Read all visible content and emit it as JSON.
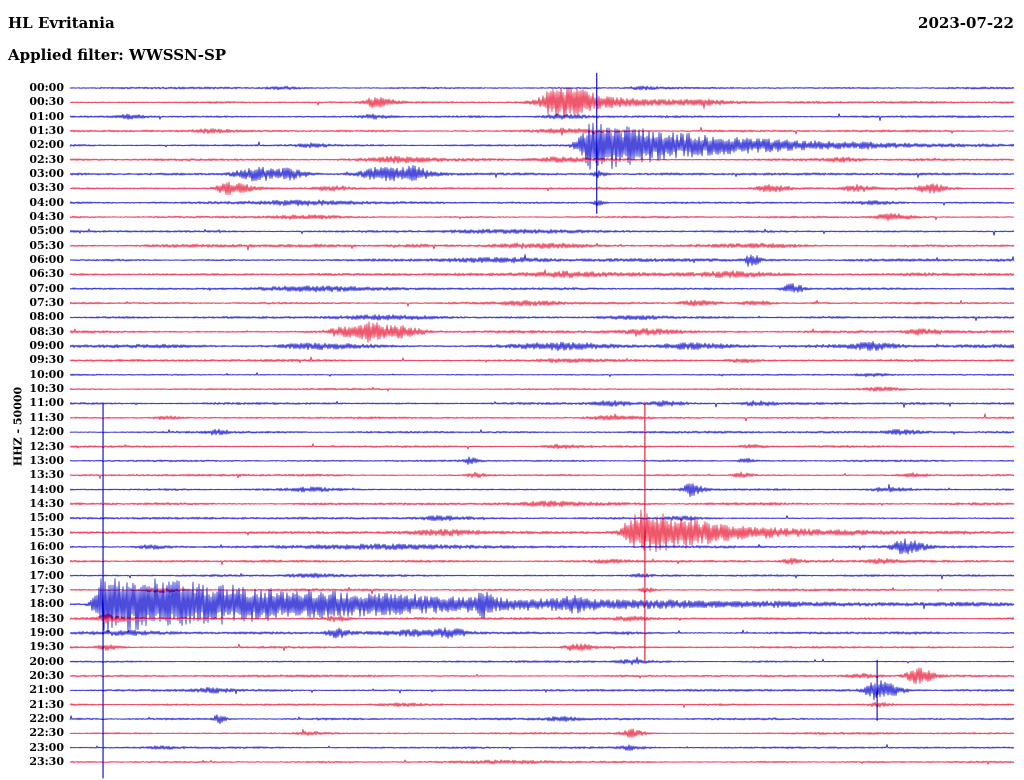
{
  "header": {
    "station": "HL Evritania",
    "date": "2023-07-22",
    "filter_label": "Applied filter: WWSSN-SP"
  },
  "axis": {
    "scale_label": "HHZ - 50000"
  },
  "colors": {
    "blue": "#0000cc",
    "red": "#e8102e",
    "text": "#000000",
    "background": "#ffffff"
  },
  "chart_data": {
    "type": "line",
    "subtype": "seismogram-helicorder",
    "station": "HL Evritania",
    "date": "2023-07-22",
    "applied_filter": "WWSSN-SP",
    "channel": "HHZ",
    "scale": "50000",
    "minutes_per_row": 30,
    "legend_position": "none",
    "grid": false,
    "rows": [
      {
        "label": "00:00",
        "color": "blue",
        "noise": 0.9
      },
      {
        "label": "00:30",
        "color": "red",
        "noise": 1.0
      },
      {
        "label": "01:00",
        "color": "blue",
        "noise": 1.0
      },
      {
        "label": "01:30",
        "color": "red",
        "noise": 1.0
      },
      {
        "label": "02:00",
        "color": "blue",
        "noise": 1.0
      },
      {
        "label": "02:30",
        "color": "red",
        "noise": 1.2
      },
      {
        "label": "03:00",
        "color": "blue",
        "noise": 1.1
      },
      {
        "label": "03:30",
        "color": "red",
        "noise": 1.0
      },
      {
        "label": "04:00",
        "color": "blue",
        "noise": 1.1
      },
      {
        "label": "04:30",
        "color": "red",
        "noise": 1.0
      },
      {
        "label": "05:00",
        "color": "blue",
        "noise": 1.0
      },
      {
        "label": "05:30",
        "color": "red",
        "noise": 1.5
      },
      {
        "label": "06:00",
        "color": "blue",
        "noise": 1.2
      },
      {
        "label": "06:30",
        "color": "red",
        "noise": 1.4
      },
      {
        "label": "07:00",
        "color": "blue",
        "noise": 1.1
      },
      {
        "label": "07:30",
        "color": "red",
        "noise": 1.1
      },
      {
        "label": "08:00",
        "color": "blue",
        "noise": 1.0
      },
      {
        "label": "08:30",
        "color": "red",
        "noise": 1.3
      },
      {
        "label": "09:00",
        "color": "blue",
        "noise": 1.8
      },
      {
        "label": "09:30",
        "color": "red",
        "noise": 1.1
      },
      {
        "label": "10:00",
        "color": "blue",
        "noise": 0.8
      },
      {
        "label": "10:30",
        "color": "red",
        "noise": 0.8
      },
      {
        "label": "11:00",
        "color": "blue",
        "noise": 1.0
      },
      {
        "label": "11:30",
        "color": "red",
        "noise": 1.0
      },
      {
        "label": "12:00",
        "color": "blue",
        "noise": 1.0
      },
      {
        "label": "12:30",
        "color": "red",
        "noise": 1.0
      },
      {
        "label": "13:00",
        "color": "blue",
        "noise": 0.9
      },
      {
        "label": "13:30",
        "color": "red",
        "noise": 1.0
      },
      {
        "label": "14:00",
        "color": "blue",
        "noise": 1.0
      },
      {
        "label": "14:30",
        "color": "red",
        "noise": 1.2
      },
      {
        "label": "15:00",
        "color": "blue",
        "noise": 1.0
      },
      {
        "label": "15:30",
        "color": "red",
        "noise": 1.3
      },
      {
        "label": "16:00",
        "color": "blue",
        "noise": 1.1
      },
      {
        "label": "16:30",
        "color": "red",
        "noise": 1.1
      },
      {
        "label": "17:00",
        "color": "blue",
        "noise": 1.0
      },
      {
        "label": "17:30",
        "color": "red",
        "noise": 1.1
      },
      {
        "label": "18:00",
        "color": "blue",
        "noise": 1.0
      },
      {
        "label": "18:30",
        "color": "red",
        "noise": 1.1
      },
      {
        "label": "19:00",
        "color": "blue",
        "noise": 1.2
      },
      {
        "label": "19:30",
        "color": "red",
        "noise": 1.0
      },
      {
        "label": "20:00",
        "color": "blue",
        "noise": 0.9
      },
      {
        "label": "20:30",
        "color": "red",
        "noise": 1.0
      },
      {
        "label": "21:00",
        "color": "blue",
        "noise": 1.0
      },
      {
        "label": "21:30",
        "color": "red",
        "noise": 0.9
      },
      {
        "label": "22:00",
        "color": "blue",
        "noise": 1.0
      },
      {
        "label": "22:30",
        "color": "red",
        "noise": 1.0
      },
      {
        "label": "23:00",
        "color": "blue",
        "noise": 0.9
      },
      {
        "label": "23:30",
        "color": "red",
        "noise": 0.9
      }
    ],
    "events_format": [
      "row_index",
      "x_fraction_of_line",
      "amplitude_px",
      "rise_px",
      "decay_px"
    ],
    "events": [
      [
        0,
        0.222,
        1.8,
        10,
        15
      ],
      [
        0,
        0.604,
        1.5,
        8,
        12
      ],
      [
        1,
        0.519,
        16,
        14,
        30
      ],
      [
        1,
        0.323,
        5,
        8,
        14
      ],
      [
        1,
        0.6,
        3,
        20,
        40
      ],
      [
        1,
        0.67,
        2.5,
        15,
        25
      ],
      [
        2,
        0.318,
        2,
        8,
        12
      ],
      [
        2,
        0.519,
        2.5,
        12,
        20
      ],
      [
        2,
        0.064,
        1.8,
        8,
        12
      ],
      [
        3,
        0.519,
        2.5,
        15,
        25
      ],
      [
        3,
        0.148,
        1.5,
        10,
        15
      ],
      [
        4,
        0.556,
        26,
        10,
        120
      ],
      [
        4,
        0.254,
        1.8,
        10,
        15
      ],
      [
        5,
        0.35,
        3,
        20,
        30
      ],
      [
        5,
        0.519,
        2.5,
        15,
        25
      ],
      [
        5,
        0.817,
        2,
        10,
        15
      ],
      [
        6,
        0.196,
        6,
        14,
        20
      ],
      [
        6,
        0.233,
        4,
        8,
        12
      ],
      [
        6,
        0.334,
        7,
        16,
        25
      ],
      [
        6,
        0.365,
        4,
        6,
        10
      ],
      [
        6,
        0.558,
        3,
        3,
        6
      ],
      [
        7,
        0.167,
        6,
        8,
        18
      ],
      [
        7,
        0.741,
        3,
        10,
        15
      ],
      [
        7,
        0.832,
        3,
        8,
        12
      ],
      [
        7,
        0.909,
        4.5,
        8,
        14
      ],
      [
        7,
        0.275,
        2,
        10,
        15
      ],
      [
        8,
        0.244,
        2,
        30,
        40
      ],
      [
        8,
        0.558,
        2.5,
        3,
        6
      ],
      [
        8,
        0.847,
        2,
        15,
        20
      ],
      [
        9,
        0.869,
        3.5,
        10,
        16
      ],
      [
        9,
        0.244,
        1.8,
        20,
        30
      ],
      [
        10,
        0.477,
        1.8,
        60,
        80
      ],
      [
        11,
        0.487,
        2.5,
        30,
        40
      ],
      [
        11,
        0.731,
        2,
        20,
        30
      ],
      [
        12,
        0.72,
        7,
        3,
        6
      ],
      [
        12,
        0.466,
        2,
        40,
        60
      ],
      [
        13,
        0.53,
        2.2,
        40,
        50
      ],
      [
        13,
        0.699,
        2,
        20,
        30
      ],
      [
        14,
        0.763,
        5,
        6,
        10
      ],
      [
        14,
        0.254,
        2,
        30,
        40
      ],
      [
        15,
        0.662,
        2.5,
        10,
        14
      ],
      [
        15,
        0.726,
        2,
        8,
        12
      ],
      [
        15,
        0.487,
        2,
        20,
        30
      ],
      [
        16,
        0.328,
        2,
        30,
        40
      ],
      [
        16,
        0.593,
        2,
        20,
        30
      ],
      [
        17,
        0.291,
        6,
        10,
        15
      ],
      [
        17,
        0.318,
        9,
        6,
        10
      ],
      [
        17,
        0.344,
        6,
        8,
        20
      ],
      [
        17,
        0.614,
        2.5,
        15,
        25
      ],
      [
        17,
        0.9,
        2.5,
        10,
        15
      ],
      [
        18,
        0.254,
        2.5,
        20,
        30
      ],
      [
        18,
        0.519,
        2.5,
        20,
        30
      ],
      [
        18,
        0.646,
        2.5,
        15,
        25
      ],
      [
        18,
        0.847,
        3,
        12,
        18
      ],
      [
        19,
        0.519,
        2,
        15,
        25
      ],
      [
        19,
        0.71,
        2,
        10,
        15
      ],
      [
        20,
        0.847,
        1.8,
        10,
        15
      ],
      [
        21,
        0.858,
        1.8,
        10,
        15
      ],
      [
        22,
        0.572,
        2.2,
        10,
        15
      ],
      [
        22,
        0.63,
        2.5,
        10,
        15
      ],
      [
        22,
        0.726,
        2,
        10,
        15
      ],
      [
        23,
        0.101,
        2,
        8,
        12
      ],
      [
        23,
        0.572,
        1.8,
        15,
        20
      ],
      [
        24,
        0.154,
        2.2,
        6,
        10
      ],
      [
        24,
        0.879,
        2,
        10,
        14
      ],
      [
        25,
        0.519,
        2,
        10,
        15
      ],
      [
        25,
        0.72,
        1.8,
        8,
        12
      ],
      [
        26,
        0.424,
        3,
        4,
        6
      ],
      [
        26,
        0.715,
        2.5,
        4,
        6
      ],
      [
        27,
        0.429,
        2.5,
        5,
        8
      ],
      [
        27,
        0.71,
        3,
        5,
        8
      ],
      [
        27,
        0.89,
        2,
        8,
        12
      ],
      [
        28,
        0.657,
        6.5,
        5,
        9
      ],
      [
        28,
        0.863,
        2,
        10,
        15
      ],
      [
        28,
        0.254,
        1.8,
        15,
        20
      ],
      [
        29,
        0.508,
        2,
        20,
        30
      ],
      [
        30,
        0.646,
        2,
        10,
        15
      ],
      [
        30,
        0.392,
        1.8,
        15,
        20
      ],
      [
        31,
        0.609,
        24,
        12,
        80
      ],
      [
        31,
        0.4,
        2.5,
        20,
        30
      ],
      [
        32,
        0.884,
        7,
        8,
        14
      ],
      [
        32,
        0.339,
        2.5,
        50,
        60
      ],
      [
        32,
        0.085,
        2,
        10,
        15
      ],
      [
        33,
        0.763,
        2.5,
        5,
        8
      ],
      [
        33,
        0.858,
        2,
        8,
        12
      ],
      [
        33,
        0.572,
        1.8,
        15,
        20
      ],
      [
        34,
        0.254,
        2,
        15,
        20
      ],
      [
        34,
        0.604,
        2,
        5,
        8
      ],
      [
        35,
        0.609,
        2.5,
        4,
        8
      ],
      [
        35,
        0.095,
        2,
        10,
        15
      ],
      [
        36,
        0.035,
        30,
        6,
        260
      ],
      [
        36,
        0.437,
        8,
        3,
        6
      ],
      [
        36,
        0.53,
        4,
        8,
        14
      ],
      [
        37,
        0.042,
        4,
        8,
        14
      ],
      [
        37,
        0.281,
        2.5,
        6,
        10
      ],
      [
        37,
        0.593,
        2,
        10,
        15
      ],
      [
        38,
        0.281,
        4.5,
        6,
        10
      ],
      [
        38,
        0.371,
        2.5,
        25,
        35
      ],
      [
        38,
        0.403,
        3,
        8,
        12
      ],
      [
        38,
        0.064,
        2,
        30,
        60
      ],
      [
        39,
        0.535,
        4,
        7,
        12
      ],
      [
        39,
        0.037,
        2.5,
        6,
        10
      ],
      [
        40,
        0.593,
        1.8,
        10,
        15
      ],
      [
        41,
        0.897,
        8,
        7,
        12
      ],
      [
        41,
        0.837,
        2,
        8,
        12
      ],
      [
        42,
        0.855,
        9,
        8,
        16
      ],
      [
        42,
        0.148,
        2,
        10,
        15
      ],
      [
        43,
        0.855,
        2,
        6,
        10
      ],
      [
        43,
        0.35,
        1.5,
        15,
        20
      ],
      [
        44,
        0.157,
        5,
        3,
        5
      ],
      [
        44,
        0.519,
        2,
        10,
        15
      ],
      [
        45,
        0.593,
        4,
        6,
        10
      ],
      [
        45,
        0.254,
        1.8,
        10,
        15
      ],
      [
        46,
        0.593,
        2,
        8,
        12
      ],
      [
        46,
        0.095,
        1.5,
        10,
        15
      ],
      [
        47,
        0.456,
        1.2,
        30,
        40
      ]
    ],
    "spikes_format": [
      "row_index",
      "x_fraction_of_line",
      "extent_up_px",
      "extent_down_px"
    ],
    "spikes": [
      [
        4,
        0.558,
        72,
        68
      ],
      [
        31,
        0.609,
        130,
        128
      ],
      [
        36,
        0.035,
        200,
        176
      ],
      [
        42,
        0.855,
        30,
        30
      ]
    ]
  }
}
